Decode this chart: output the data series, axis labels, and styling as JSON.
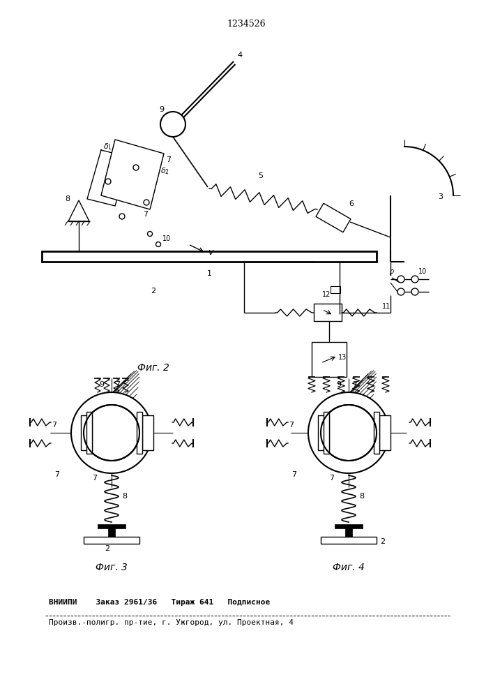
{
  "patent_number": "1234526",
  "fig2_label": "Фиг. 2",
  "fig3_label": "Фиг. 3",
  "fig4_label": "Фиг. 4",
  "bottom_line1": "ВНИИПИ    Заказ 2961/36   Тираж 641   Подписное",
  "bottom_line2": "Произв.-полигр. пр-тие, г. Ужгород, ул. Проектная, 4",
  "bg_color": "#ffffff",
  "line_color": "#000000"
}
